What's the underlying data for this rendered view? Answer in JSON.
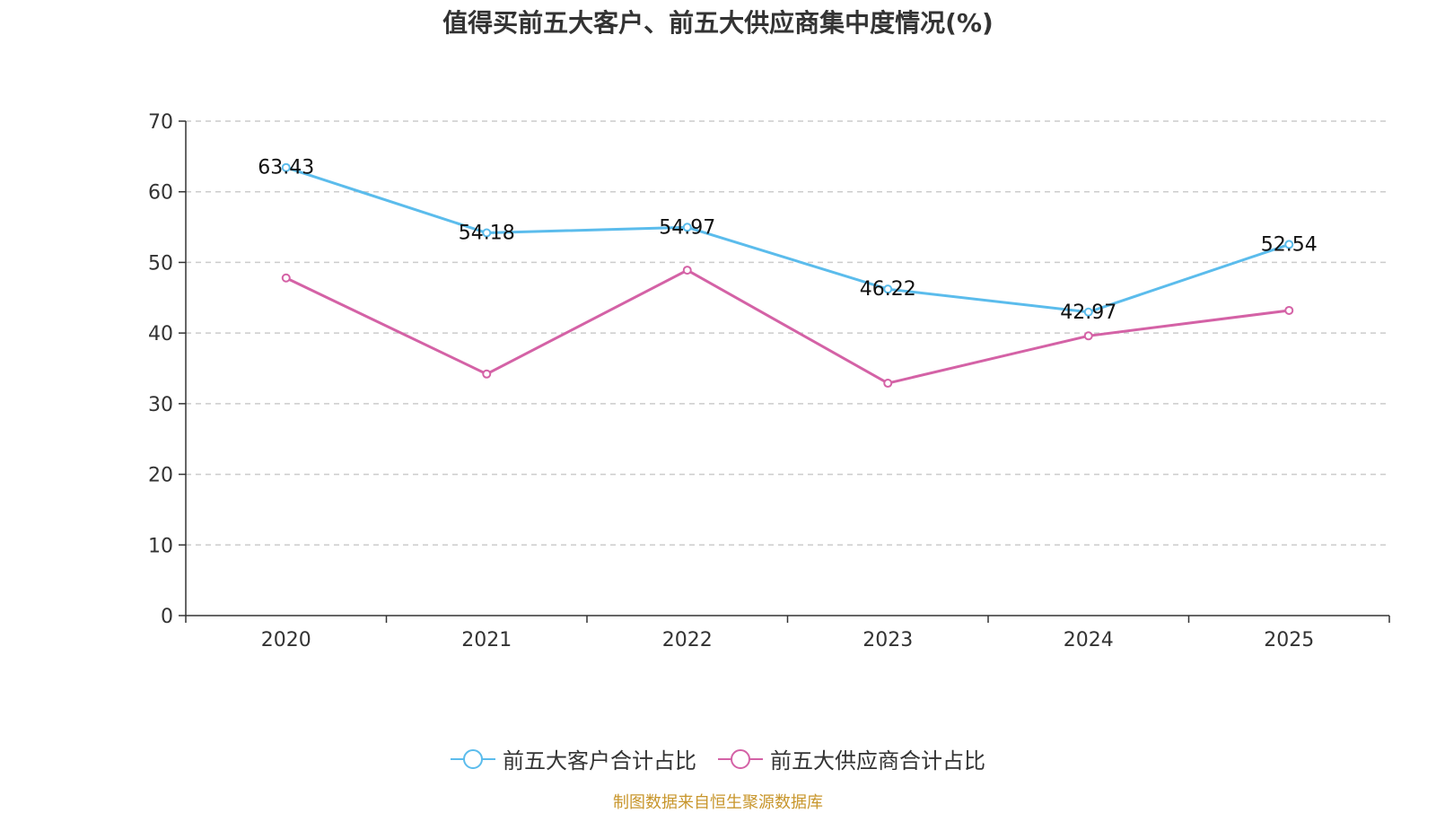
{
  "chart_data": {
    "type": "line",
    "title": "值得买前五大客户、前五大供应商集中度情况(%)",
    "categories": [
      "2020",
      "2021",
      "2022",
      "2023",
      "2024",
      "2025"
    ],
    "series": [
      {
        "name": "前五大客户合计占比",
        "color": "#5bbcec",
        "values": [
          63.43,
          54.18,
          54.97,
          46.22,
          42.97,
          52.54
        ],
        "labels": [
          "63.43",
          "54.18",
          "54.97",
          "46.22",
          "42.97",
          "52.54"
        ],
        "show_labels": true
      },
      {
        "name": "前五大供应商合计占比",
        "color": "#d462a6",
        "values": [
          47.8,
          34.2,
          48.9,
          32.9,
          39.6,
          43.2
        ],
        "show_labels": false
      }
    ],
    "ylim": [
      0,
      70
    ],
    "yticks": [
      "0",
      "10",
      "20",
      "30",
      "40",
      "50",
      "60",
      "70"
    ],
    "grid": true,
    "legend": "bottom-center",
    "source": "制图数据来自恒生聚源数据库"
  }
}
